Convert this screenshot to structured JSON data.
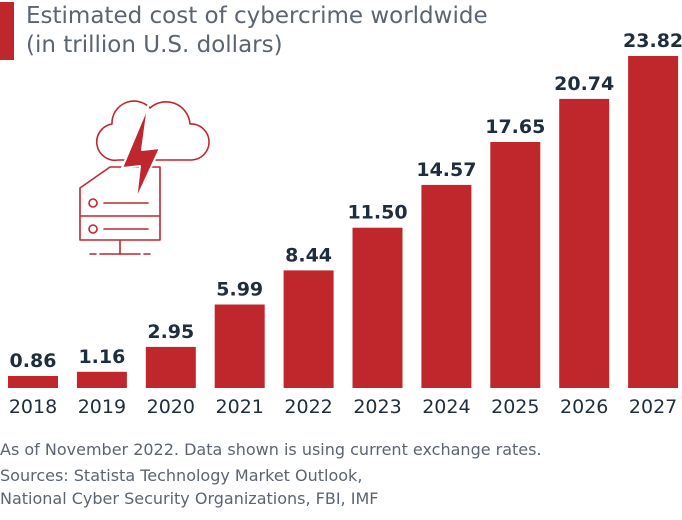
{
  "chart_data": {
    "type": "bar",
    "title": "Estimated cost of cybercrime worldwide",
    "subtitle": "(in trillion U.S. dollars)",
    "categories": [
      "2018",
      "2019",
      "2020",
      "2021",
      "2022",
      "2023",
      "2024",
      "2025",
      "2026",
      "2027"
    ],
    "values": [
      0.86,
      1.16,
      2.95,
      5.99,
      8.44,
      11.5,
      14.57,
      17.65,
      20.74,
      23.82
    ],
    "value_labels": [
      "0.86",
      "1.16",
      "2.95",
      "5.99",
      "8.44",
      "11.50",
      "14.57",
      "17.65",
      "20.74",
      "23.82"
    ],
    "xlabel": "",
    "ylabel": "",
    "ylim": [
      0,
      23.82
    ],
    "bar_color": "#c0272d",
    "grid": false
  },
  "footer": {
    "note": "As of November 2022. Data shown is using current exchange rates.",
    "sources_line1": "Sources: Statista Technology Market Outlook,",
    "sources_line2": "National Cyber Security Organizations, FBI, IMF"
  },
  "illustration": {
    "icon": "cloud-server-lightning-icon",
    "color": "#c0272d"
  }
}
